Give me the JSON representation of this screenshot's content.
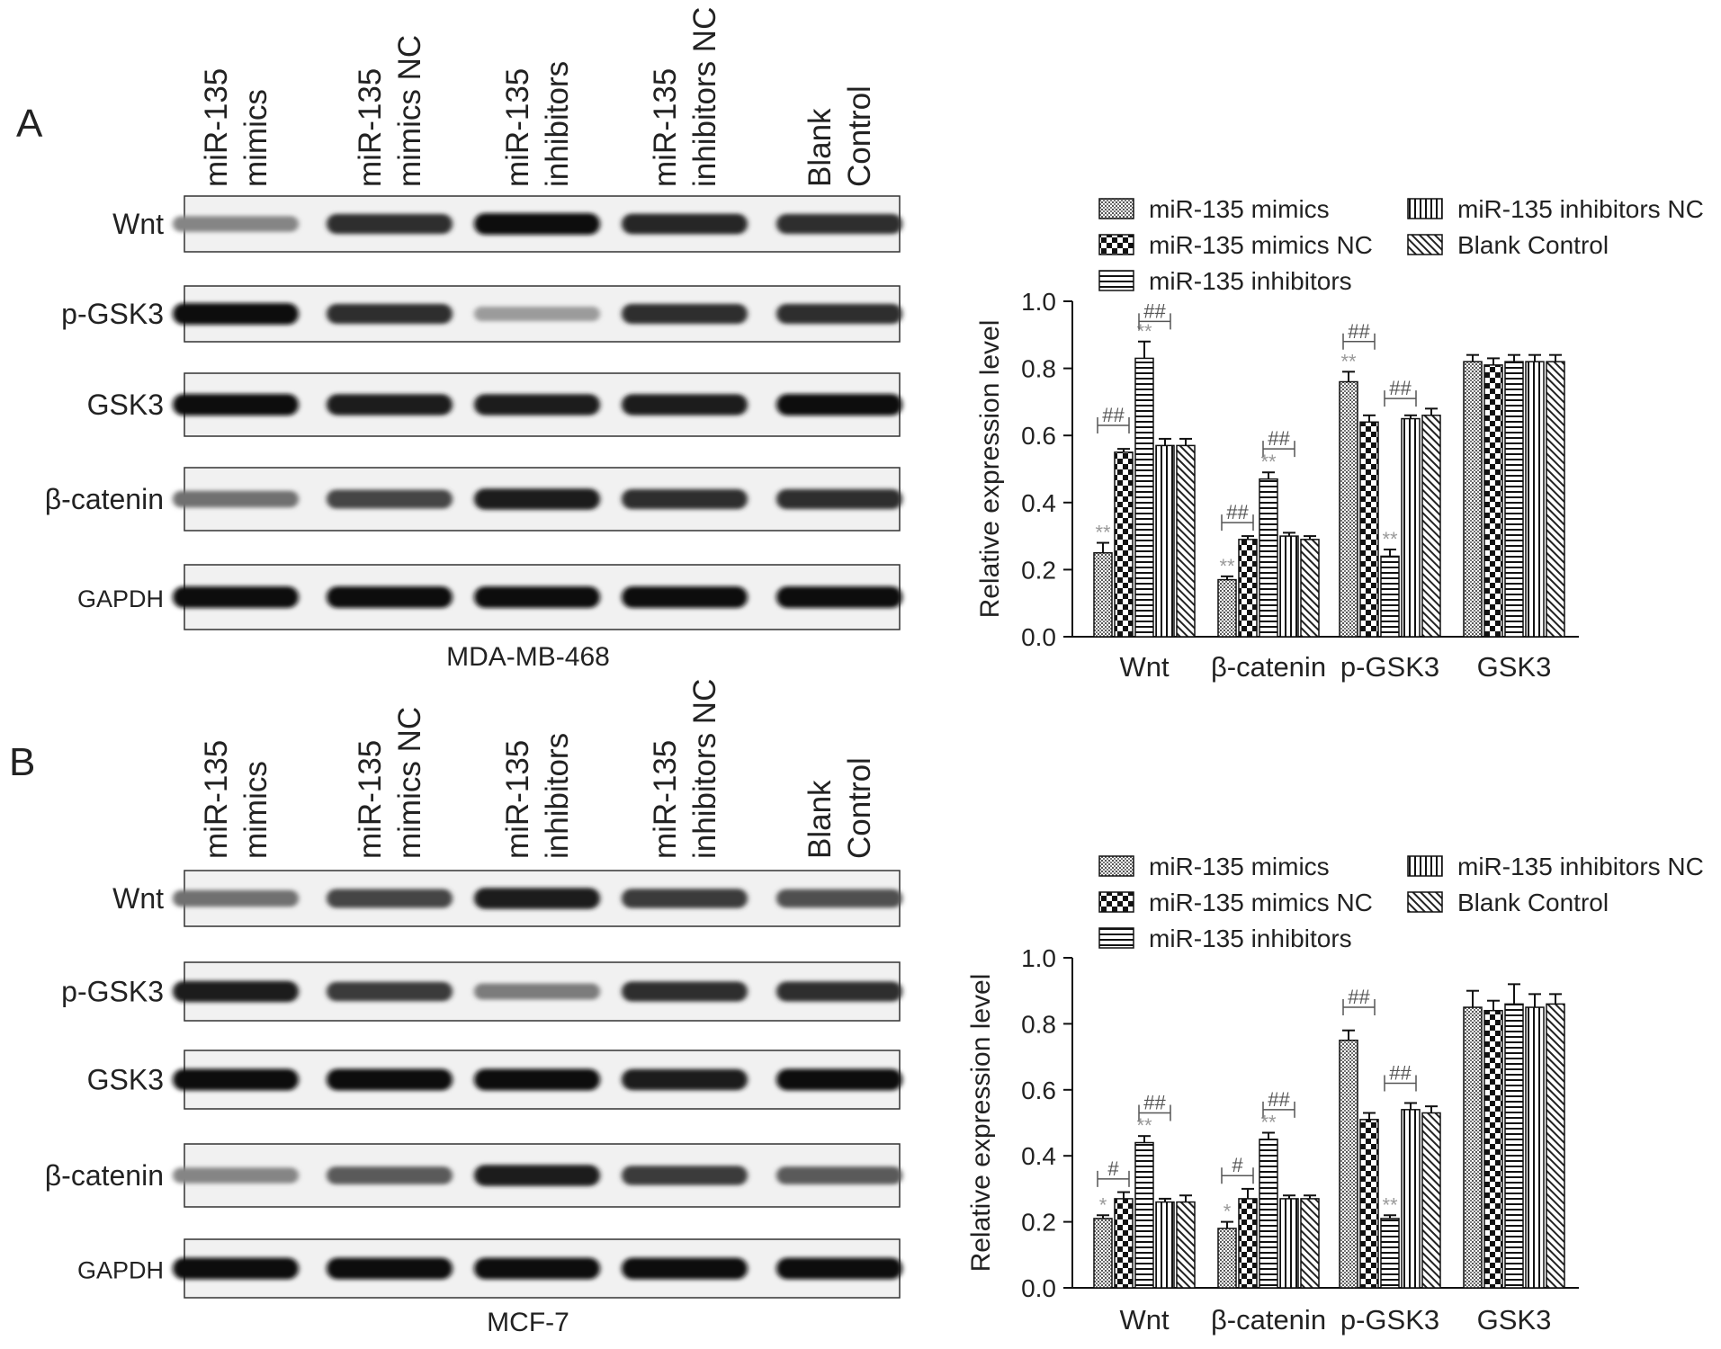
{
  "panels": [
    {
      "label": "A",
      "cell_line": "MDA-MB-468",
      "lane_labels": [
        [
          "miR-135",
          "mimics"
        ],
        [
          "miR-135",
          "mimics NC"
        ],
        [
          "miR-135",
          "inhibitors"
        ],
        [
          "miR-135",
          "inhibitors NC"
        ],
        [
          "Blank",
          "Control"
        ]
      ],
      "blot_rows": [
        {
          "label": "Wnt",
          "intensity": [
            0.45,
            0.85,
            1.0,
            0.9,
            0.85
          ]
        },
        {
          "label": "p-GSK3",
          "intensity": [
            1.0,
            0.85,
            0.35,
            0.85,
            0.85
          ]
        },
        {
          "label": "GSK3",
          "intensity": [
            1.0,
            0.95,
            0.95,
            0.95,
            1.0
          ]
        },
        {
          "label": "β-catenin",
          "intensity": [
            0.55,
            0.75,
            0.95,
            0.85,
            0.85
          ]
        },
        {
          "label": "GAPDH",
          "intensity": [
            1.0,
            1.0,
            1.0,
            1.0,
            1.0
          ]
        }
      ]
    },
    {
      "label": "B",
      "cell_line": "MCF-7",
      "lane_labels": [
        [
          "miR-135",
          "mimics"
        ],
        [
          "miR-135",
          "mimics NC"
        ],
        [
          "miR-135",
          "inhibitors"
        ],
        [
          "miR-135",
          "inhibitors NC"
        ],
        [
          "Blank",
          "Control"
        ]
      ],
      "blot_rows": [
        {
          "label": "Wnt",
          "intensity": [
            0.55,
            0.75,
            0.95,
            0.8,
            0.7
          ]
        },
        {
          "label": "p-GSK3",
          "intensity": [
            0.95,
            0.8,
            0.5,
            0.85,
            0.85
          ]
        },
        {
          "label": "GSK3",
          "intensity": [
            1.0,
            1.0,
            1.0,
            0.95,
            1.0
          ]
        },
        {
          "label": "β-catenin",
          "intensity": [
            0.45,
            0.65,
            0.95,
            0.8,
            0.65
          ]
        },
        {
          "label": "GAPDH",
          "intensity": [
            1.0,
            1.0,
            1.0,
            1.0,
            1.0
          ]
        }
      ]
    }
  ],
  "chart_data": [
    {
      "type": "bar",
      "panel": "A",
      "ylabel": "Relative expression level",
      "ylim": [
        0,
        1.0
      ],
      "yticks": [
        "0.0",
        "0.2",
        "0.4",
        "0.6",
        "0.8",
        "1.0"
      ],
      "categories": [
        "Wnt",
        "β-catenin",
        "p-GSK3",
        "GSK3"
      ],
      "series": [
        {
          "name": "miR-135 mimics",
          "pattern": "dots",
          "values": [
            0.25,
            0.17,
            0.76,
            0.82
          ],
          "errors": [
            0.03,
            0.01,
            0.03,
            0.02
          ]
        },
        {
          "name": "miR-135 mimics NC",
          "pattern": "checker",
          "values": [
            0.55,
            0.29,
            0.64,
            0.81
          ],
          "errors": [
            0.01,
            0.01,
            0.02,
            0.02
          ]
        },
        {
          "name": "miR-135 inhibitors",
          "pattern": "hlines",
          "values": [
            0.83,
            0.47,
            0.24,
            0.82
          ],
          "errors": [
            0.05,
            0.02,
            0.02,
            0.02
          ]
        },
        {
          "name": "miR-135 inhibitors NC",
          "pattern": "vlines",
          "values": [
            0.57,
            0.3,
            0.65,
            0.82
          ],
          "errors": [
            0.02,
            0.01,
            0.01,
            0.02
          ]
        },
        {
          "name": "Blank Control",
          "pattern": "diag",
          "values": [
            0.57,
            0.29,
            0.66,
            0.82
          ],
          "errors": [
            0.02,
            0.01,
            0.02,
            0.02
          ]
        }
      ],
      "stars": [
        {
          "category": 0,
          "series": 0,
          "text": "**"
        },
        {
          "category": 0,
          "series": 2,
          "text": "**"
        },
        {
          "category": 1,
          "series": 0,
          "text": "**"
        },
        {
          "category": 1,
          "series": 2,
          "text": "**"
        },
        {
          "category": 2,
          "series": 0,
          "text": "**"
        },
        {
          "category": 2,
          "series": 2,
          "text": "**"
        }
      ],
      "brackets": [
        {
          "category": 0,
          "from": 0,
          "to": 1,
          "y": 0.63,
          "text": "##"
        },
        {
          "category": 0,
          "from": 2,
          "to": 3,
          "y": 0.94,
          "text": "##"
        },
        {
          "category": 1,
          "from": 0,
          "to": 1,
          "y": 0.34,
          "text": "##"
        },
        {
          "category": 1,
          "from": 2,
          "to": 3,
          "y": 0.56,
          "text": "##"
        },
        {
          "category": 2,
          "from": 0,
          "to": 1,
          "y": 0.88,
          "text": "##"
        },
        {
          "category": 2,
          "from": 2,
          "to": 3,
          "y": 0.71,
          "text": "##"
        }
      ]
    },
    {
      "type": "bar",
      "panel": "B",
      "ylabel": "Relative expression level",
      "ylim": [
        0,
        1.0
      ],
      "yticks": [
        "0.0",
        "0.2",
        "0.4",
        "0.6",
        "0.8",
        "1.0"
      ],
      "categories": [
        "Wnt",
        "β-catenin",
        "p-GSK3",
        "GSK3"
      ],
      "series": [
        {
          "name": "miR-135 mimics",
          "pattern": "dots",
          "values": [
            0.21,
            0.18,
            0.75,
            0.85
          ],
          "errors": [
            0.01,
            0.02,
            0.03,
            0.05
          ]
        },
        {
          "name": "miR-135 mimics NC",
          "pattern": "checker",
          "values": [
            0.27,
            0.27,
            0.51,
            0.84
          ],
          "errors": [
            0.02,
            0.03,
            0.02,
            0.03
          ]
        },
        {
          "name": "miR-135 inhibitors",
          "pattern": "hlines",
          "values": [
            0.44,
            0.45,
            0.21,
            0.86
          ],
          "errors": [
            0.02,
            0.02,
            0.01,
            0.06
          ]
        },
        {
          "name": "miR-135 inhibitors NC",
          "pattern": "vlines",
          "values": [
            0.26,
            0.27,
            0.54,
            0.85
          ],
          "errors": [
            0.01,
            0.01,
            0.02,
            0.04
          ]
        },
        {
          "name": "Blank Control",
          "pattern": "diag",
          "values": [
            0.26,
            0.27,
            0.53,
            0.86
          ],
          "errors": [
            0.02,
            0.01,
            0.02,
            0.03
          ]
        }
      ],
      "stars": [
        {
          "category": 0,
          "series": 0,
          "text": "*"
        },
        {
          "category": 0,
          "series": 2,
          "text": "**"
        },
        {
          "category": 1,
          "series": 0,
          "text": "*"
        },
        {
          "category": 1,
          "series": 2,
          "text": "**"
        },
        {
          "category": 2,
          "series": 2,
          "text": "**"
        }
      ],
      "brackets": [
        {
          "category": 0,
          "from": 0,
          "to": 1,
          "y": 0.33,
          "text": "#"
        },
        {
          "category": 0,
          "from": 2,
          "to": 3,
          "y": 0.53,
          "text": "##"
        },
        {
          "category": 1,
          "from": 0,
          "to": 1,
          "y": 0.34,
          "text": "#"
        },
        {
          "category": 1,
          "from": 2,
          "to": 3,
          "y": 0.54,
          "text": "##"
        },
        {
          "category": 2,
          "from": 0,
          "to": 1,
          "y": 0.85,
          "text": "##"
        },
        {
          "category": 2,
          "from": 2,
          "to": 3,
          "y": 0.62,
          "text": "##"
        }
      ]
    }
  ]
}
